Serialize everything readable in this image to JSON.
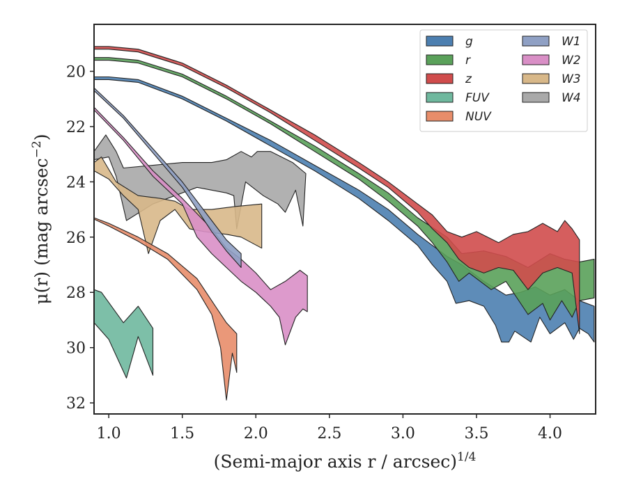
{
  "chart_data": {
    "type": "area",
    "xlabel": "(Semi-major axis r / arcsec)",
    "xlabel_exponent": "1/4",
    "ylabel": "μ(r) (mag arcsec",
    "ylabel_exponent": "−2",
    "ylabel_tail": ")",
    "xlim": [
      0.9,
      4.31
    ],
    "ylim": [
      32.4,
      18.3
    ],
    "y_inverted": true,
    "xticks": [
      1.0,
      1.5,
      2.0,
      2.5,
      3.0,
      3.5,
      4.0
    ],
    "xtick_labels": [
      "1.0",
      "1.5",
      "2.0",
      "2.5",
      "3.0",
      "3.5",
      "4.0"
    ],
    "yticks": [
      20,
      22,
      24,
      26,
      28,
      30,
      32
    ],
    "ytick_labels": [
      "20",
      "22",
      "24",
      "26",
      "28",
      "30",
      "32"
    ],
    "grid": false,
    "legend_position": "top-right",
    "legend_columns": 2,
    "series": [
      {
        "name": "W4",
        "color": "#a9a9a9",
        "upper": [
          [
            0.9,
            22.9
          ],
          [
            0.98,
            22.3
          ],
          [
            1.05,
            22.9
          ],
          [
            1.1,
            23.5
          ],
          [
            1.3,
            23.4
          ],
          [
            1.5,
            23.3
          ],
          [
            1.7,
            23.3
          ],
          [
            1.8,
            23.2
          ],
          [
            1.9,
            22.9
          ],
          [
            1.97,
            23.1
          ],
          [
            2.01,
            22.9
          ],
          [
            2.1,
            22.9
          ],
          [
            2.25,
            23.3
          ],
          [
            2.34,
            23.7
          ]
        ],
        "lower": [
          [
            0.9,
            23.2
          ],
          [
            1.0,
            23.1
          ],
          [
            1.05,
            23.8
          ],
          [
            1.12,
            25.4
          ],
          [
            1.3,
            24.8
          ],
          [
            1.45,
            24.5
          ],
          [
            1.6,
            24.2
          ],
          [
            1.7,
            24.3
          ],
          [
            1.8,
            24.4
          ],
          [
            1.85,
            24.5
          ],
          [
            1.87,
            25.7
          ],
          [
            1.93,
            24.0
          ],
          [
            2.05,
            24.5
          ],
          [
            2.15,
            24.8
          ],
          [
            2.2,
            25.1
          ],
          [
            2.27,
            24.3
          ],
          [
            2.32,
            25.6
          ],
          [
            2.34,
            23.7
          ]
        ]
      },
      {
        "name": "W3",
        "color": "#d8b889",
        "upper": [
          [
            0.9,
            23.3
          ],
          [
            0.95,
            23.1
          ],
          [
            1.05,
            24.0
          ],
          [
            1.2,
            24.5
          ],
          [
            1.35,
            24.6
          ],
          [
            1.45,
            24.7
          ],
          [
            1.55,
            25.0
          ],
          [
            1.7,
            25.0
          ],
          [
            1.85,
            24.9
          ],
          [
            2.04,
            24.8
          ]
        ],
        "lower": [
          [
            0.9,
            23.6
          ],
          [
            1.0,
            23.9
          ],
          [
            1.1,
            24.5
          ],
          [
            1.2,
            25.0
          ],
          [
            1.27,
            26.6
          ],
          [
            1.35,
            25.4
          ],
          [
            1.45,
            25.0
          ],
          [
            1.55,
            25.7
          ],
          [
            1.65,
            25.8
          ],
          [
            1.8,
            25.9
          ],
          [
            1.9,
            26.0
          ],
          [
            2.04,
            26.4
          ]
        ]
      },
      {
        "name": "W2",
        "color": "#d98fc6",
        "upper": [
          [
            0.9,
            21.3
          ],
          [
            1.1,
            22.4
          ],
          [
            1.3,
            23.6
          ],
          [
            1.5,
            24.6
          ],
          [
            1.7,
            25.7
          ],
          [
            1.8,
            26.4
          ],
          [
            1.9,
            26.8
          ],
          [
            2.0,
            27.3
          ],
          [
            2.1,
            27.9
          ],
          [
            2.2,
            27.6
          ],
          [
            2.3,
            27.2
          ],
          [
            2.35,
            27.4
          ]
        ],
        "lower": [
          [
            0.9,
            21.4
          ],
          [
            1.1,
            22.5
          ],
          [
            1.3,
            23.8
          ],
          [
            1.5,
            24.8
          ],
          [
            1.6,
            26.0
          ],
          [
            1.7,
            26.6
          ],
          [
            1.8,
            27.1
          ],
          [
            1.9,
            27.6
          ],
          [
            2.0,
            28.0
          ],
          [
            2.1,
            28.5
          ],
          [
            2.16,
            28.9
          ],
          [
            2.2,
            29.9
          ],
          [
            2.27,
            28.9
          ],
          [
            2.32,
            28.6
          ],
          [
            2.35,
            28.7
          ]
        ]
      },
      {
        "name": "W1",
        "color": "#8fa0c4",
        "upper": [
          [
            0.9,
            20.6
          ],
          [
            1.1,
            21.6
          ],
          [
            1.3,
            22.8
          ],
          [
            1.5,
            24.0
          ],
          [
            1.6,
            24.7
          ],
          [
            1.7,
            25.4
          ],
          [
            1.8,
            26.1
          ],
          [
            1.9,
            26.6
          ]
        ],
        "lower": [
          [
            0.9,
            20.7
          ],
          [
            1.1,
            21.7
          ],
          [
            1.3,
            22.95
          ],
          [
            1.5,
            24.2
          ],
          [
            1.6,
            25.0
          ],
          [
            1.7,
            25.8
          ],
          [
            1.8,
            26.5
          ],
          [
            1.9,
            27.1
          ]
        ]
      },
      {
        "name": "NUV",
        "color": "#e88d6a",
        "upper": [
          [
            0.9,
            25.3
          ],
          [
            1.0,
            25.5
          ],
          [
            1.2,
            26.0
          ],
          [
            1.4,
            26.6
          ],
          [
            1.6,
            27.5
          ],
          [
            1.7,
            28.3
          ],
          [
            1.8,
            29.1
          ],
          [
            1.87,
            29.5
          ]
        ],
        "lower": [
          [
            0.9,
            25.35
          ],
          [
            1.0,
            25.6
          ],
          [
            1.2,
            26.15
          ],
          [
            1.4,
            26.8
          ],
          [
            1.6,
            27.9
          ],
          [
            1.7,
            28.8
          ],
          [
            1.76,
            30.0
          ],
          [
            1.8,
            31.9
          ],
          [
            1.84,
            30.2
          ],
          [
            1.87,
            30.9
          ]
        ]
      },
      {
        "name": "FUV",
        "color": "#6fb89e",
        "upper": [
          [
            0.9,
            27.9
          ],
          [
            0.95,
            28.0
          ],
          [
            1.1,
            29.1
          ],
          [
            1.2,
            28.5
          ],
          [
            1.3,
            29.3
          ]
        ],
        "lower": [
          [
            0.9,
            29.1
          ],
          [
            1.0,
            29.7
          ],
          [
            1.12,
            31.1
          ],
          [
            1.2,
            29.6
          ],
          [
            1.3,
            31.0
          ]
        ]
      },
      {
        "name": "g",
        "color": "#4c7fb0",
        "upper": [
          [
            0.9,
            20.2
          ],
          [
            1.0,
            20.2
          ],
          [
            1.2,
            20.3
          ],
          [
            1.5,
            20.9
          ],
          [
            1.8,
            21.7
          ],
          [
            2.1,
            22.5
          ],
          [
            2.4,
            23.4
          ],
          [
            2.7,
            24.3
          ],
          [
            2.9,
            25.0
          ],
          [
            3.1,
            25.9
          ],
          [
            3.3,
            26.7
          ],
          [
            3.4,
            27.0
          ],
          [
            3.55,
            27.6
          ],
          [
            3.7,
            28.1
          ],
          [
            3.8,
            28.0
          ],
          [
            3.9,
            27.8
          ],
          [
            4.0,
            28.1
          ],
          [
            4.1,
            27.9
          ],
          [
            4.2,
            28.3
          ],
          [
            4.3,
            28.5
          ]
        ],
        "lower": [
          [
            0.9,
            20.3
          ],
          [
            1.0,
            20.3
          ],
          [
            1.2,
            20.4
          ],
          [
            1.5,
            21.0
          ],
          [
            1.8,
            21.8
          ],
          [
            2.1,
            22.7
          ],
          [
            2.4,
            23.6
          ],
          [
            2.7,
            24.6
          ],
          [
            2.9,
            25.4
          ],
          [
            3.1,
            26.3
          ],
          [
            3.2,
            27.0
          ],
          [
            3.3,
            27.6
          ],
          [
            3.36,
            28.4
          ],
          [
            3.45,
            28.3
          ],
          [
            3.55,
            28.5
          ],
          [
            3.63,
            29.2
          ],
          [
            3.67,
            29.8
          ],
          [
            3.72,
            29.8
          ],
          [
            3.76,
            29.4
          ],
          [
            3.87,
            29.8
          ],
          [
            3.93,
            28.9
          ],
          [
            4.0,
            29.5
          ],
          [
            4.1,
            29.1
          ],
          [
            4.16,
            29.7
          ],
          [
            4.2,
            29.3
          ],
          [
            4.26,
            29.5
          ],
          [
            4.3,
            29.8
          ]
        ]
      },
      {
        "name": "r",
        "color": "#5aa15a",
        "upper": [
          [
            0.9,
            19.5
          ],
          [
            1.0,
            19.5
          ],
          [
            1.2,
            19.6
          ],
          [
            1.5,
            20.1
          ],
          [
            1.8,
            20.9
          ],
          [
            2.1,
            21.8
          ],
          [
            2.4,
            22.7
          ],
          [
            2.7,
            23.7
          ],
          [
            2.9,
            24.4
          ],
          [
            3.1,
            25.3
          ],
          [
            3.3,
            26.0
          ],
          [
            3.4,
            26.6
          ],
          [
            3.55,
            26.5
          ],
          [
            3.7,
            26.7
          ],
          [
            3.85,
            27.1
          ],
          [
            4.0,
            26.6
          ],
          [
            4.1,
            26.8
          ],
          [
            4.2,
            26.9
          ],
          [
            4.3,
            26.8
          ]
        ],
        "lower": [
          [
            0.9,
            19.6
          ],
          [
            1.0,
            19.6
          ],
          [
            1.2,
            19.7
          ],
          [
            1.5,
            20.2
          ],
          [
            1.8,
            21.0
          ],
          [
            2.1,
            21.9
          ],
          [
            2.4,
            22.9
          ],
          [
            2.7,
            23.9
          ],
          [
            2.9,
            24.7
          ],
          [
            3.1,
            25.6
          ],
          [
            3.2,
            26.2
          ],
          [
            3.3,
            26.9
          ],
          [
            3.38,
            27.6
          ],
          [
            3.45,
            27.3
          ],
          [
            3.6,
            27.9
          ],
          [
            3.7,
            27.6
          ],
          [
            3.85,
            28.8
          ],
          [
            3.95,
            28.4
          ],
          [
            4.0,
            29.0
          ],
          [
            4.08,
            28.3
          ],
          [
            4.15,
            28.9
          ],
          [
            4.2,
            28.3
          ],
          [
            4.3,
            28.2
          ]
        ]
      },
      {
        "name": "z",
        "color": "#d04c4c",
        "upper": [
          [
            0.9,
            19.1
          ],
          [
            1.0,
            19.1
          ],
          [
            1.2,
            19.2
          ],
          [
            1.5,
            19.7
          ],
          [
            1.8,
            20.5
          ],
          [
            2.1,
            21.4
          ],
          [
            2.4,
            22.3
          ],
          [
            2.7,
            23.3
          ],
          [
            2.9,
            24.0
          ],
          [
            3.1,
            24.8
          ],
          [
            3.2,
            25.2
          ],
          [
            3.3,
            25.8
          ],
          [
            3.4,
            26.0
          ],
          [
            3.5,
            25.8
          ],
          [
            3.65,
            26.2
          ],
          [
            3.75,
            25.9
          ],
          [
            3.85,
            25.8
          ],
          [
            3.95,
            25.5
          ],
          [
            4.05,
            25.8
          ],
          [
            4.1,
            25.4
          ],
          [
            4.15,
            25.7
          ],
          [
            4.2,
            26.1
          ]
        ],
        "lower": [
          [
            0.9,
            19.2
          ],
          [
            1.0,
            19.2
          ],
          [
            1.2,
            19.3
          ],
          [
            1.5,
            19.8
          ],
          [
            1.8,
            20.6
          ],
          [
            2.1,
            21.5
          ],
          [
            2.4,
            22.5
          ],
          [
            2.7,
            23.5
          ],
          [
            2.9,
            24.2
          ],
          [
            3.1,
            25.1
          ],
          [
            3.2,
            25.7
          ],
          [
            3.3,
            26.2
          ],
          [
            3.38,
            26.8
          ],
          [
            3.45,
            27.1
          ],
          [
            3.55,
            27.3
          ],
          [
            3.65,
            27.1
          ],
          [
            3.75,
            27.2
          ],
          [
            3.85,
            27.9
          ],
          [
            3.95,
            27.3
          ],
          [
            4.05,
            27.1
          ],
          [
            4.15,
            27.3
          ],
          [
            4.2,
            29.5
          ]
        ]
      }
    ]
  }
}
